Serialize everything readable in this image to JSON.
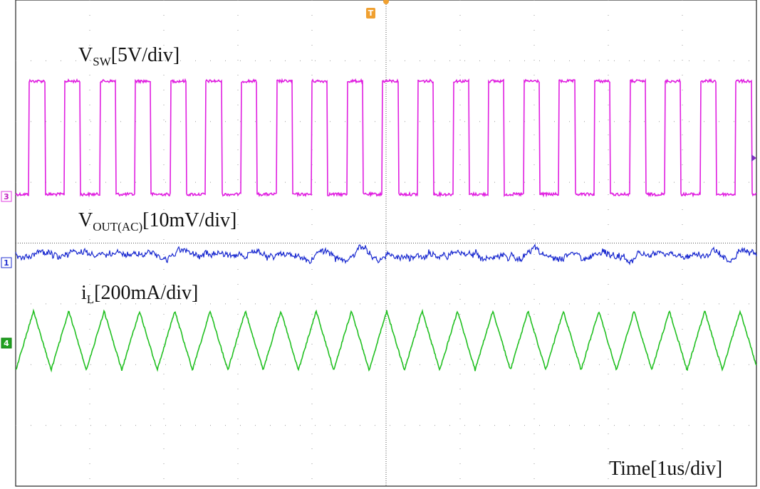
{
  "labels": [
    {
      "main": "V",
      "sub": "SW",
      "rest": "[5V/div]"
    },
    {
      "main": "V",
      "sub": "OUT(AC)",
      "rest": "[10mV/div]"
    },
    {
      "main": "i",
      "sub": "L",
      "rest": "[200mA/div]"
    }
  ],
  "time_label": "Time[1us/div]",
  "channel_markers": [
    "3",
    "1",
    "4"
  ],
  "trigger_marker": "T"
}
